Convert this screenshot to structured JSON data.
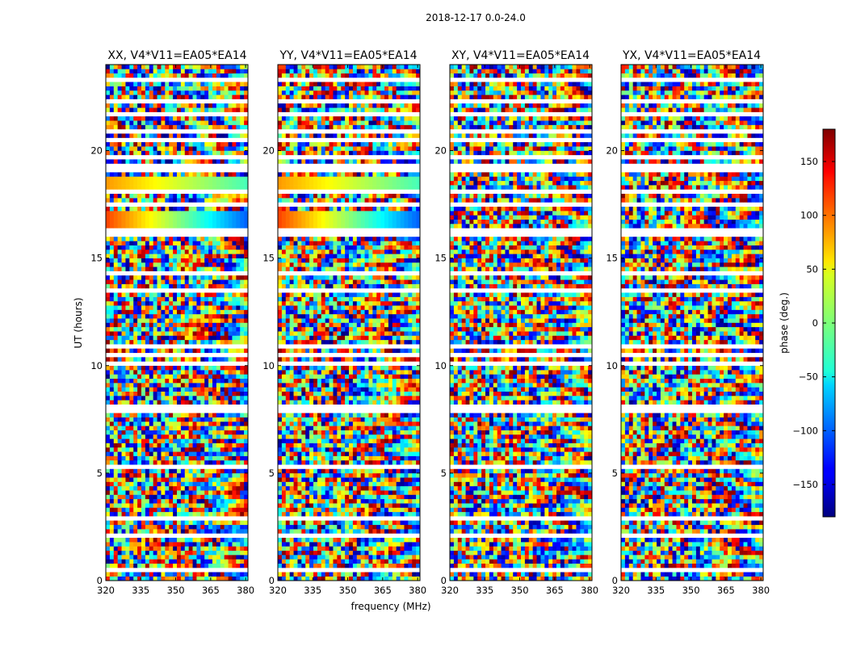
{
  "chart_data": {
    "type": "heatmap",
    "suptitle": "2018-12-17 0.0-24.0",
    "xlabel": "frequency (MHz)",
    "ylabel": "UT (hours)",
    "xlim": [
      320,
      381
    ],
    "ylim": [
      0,
      24
    ],
    "xticks": [
      320,
      335,
      350,
      365,
      380
    ],
    "yticks": [
      0,
      5,
      10,
      15,
      20
    ],
    "panels": [
      {
        "id": "xx",
        "title": "XX, V4*V11=EA05*EA14"
      },
      {
        "id": "yy",
        "title": "YY, V4*V11=EA05*EA14"
      },
      {
        "id": "xy",
        "title": "XY, V4*V11=EA05*EA14"
      },
      {
        "id": "yx",
        "title": "YX, V4*V11=EA05*EA14"
      }
    ],
    "colorbar": {
      "label": "phase (deg.)",
      "range": [
        -180,
        180
      ],
      "ticks": [
        150,
        100,
        50,
        0,
        -50,
        -100,
        -150
      ],
      "tick_labels": [
        "150",
        "100",
        "50",
        "0",
        "−50",
        "−100",
        "−150"
      ],
      "colormap": "jet"
    },
    "smooth_bands": [
      {
        "panels": [
          "xx",
          "yy"
        ],
        "t_start": 16.5,
        "t_end": 17.2,
        "phase_start": 110,
        "phase_end": -100
      },
      {
        "panels": [
          "xx",
          "yy"
        ],
        "t_start": 18.2,
        "t_end": 18.7,
        "phase_start": 80,
        "phase_end": -20
      }
    ],
    "flagged_time_ranges": [
      [
        0.45,
        0.55
      ],
      [
        2.05,
        2.15
      ],
      [
        2.8,
        3.0
      ],
      [
        3.35,
        3.45
      ],
      [
        5.3,
        5.4
      ],
      [
        7.85,
        7.95
      ],
      [
        8.1,
        8.2
      ],
      [
        9.95,
        10.15
      ],
      [
        10.45,
        10.55
      ],
      [
        10.9,
        11.0
      ],
      [
        13.5,
        13.65
      ],
      [
        14.3,
        14.35
      ],
      [
        16.1,
        16.3
      ],
      [
        16.25,
        16.35
      ],
      [
        17.35,
        17.6
      ],
      [
        17.75,
        17.85
      ],
      [
        18.05,
        18.15
      ],
      [
        18.95,
        19.3
      ],
      [
        19.6,
        19.7
      ],
      [
        20.45,
        20.6
      ],
      [
        20.75,
        20.95
      ],
      [
        21.55,
        21.7
      ],
      [
        22.15,
        22.35
      ],
      [
        22.75,
        22.85
      ],
      [
        23.2,
        23.35
      ],
      [
        23.75,
        23.85
      ]
    ]
  }
}
